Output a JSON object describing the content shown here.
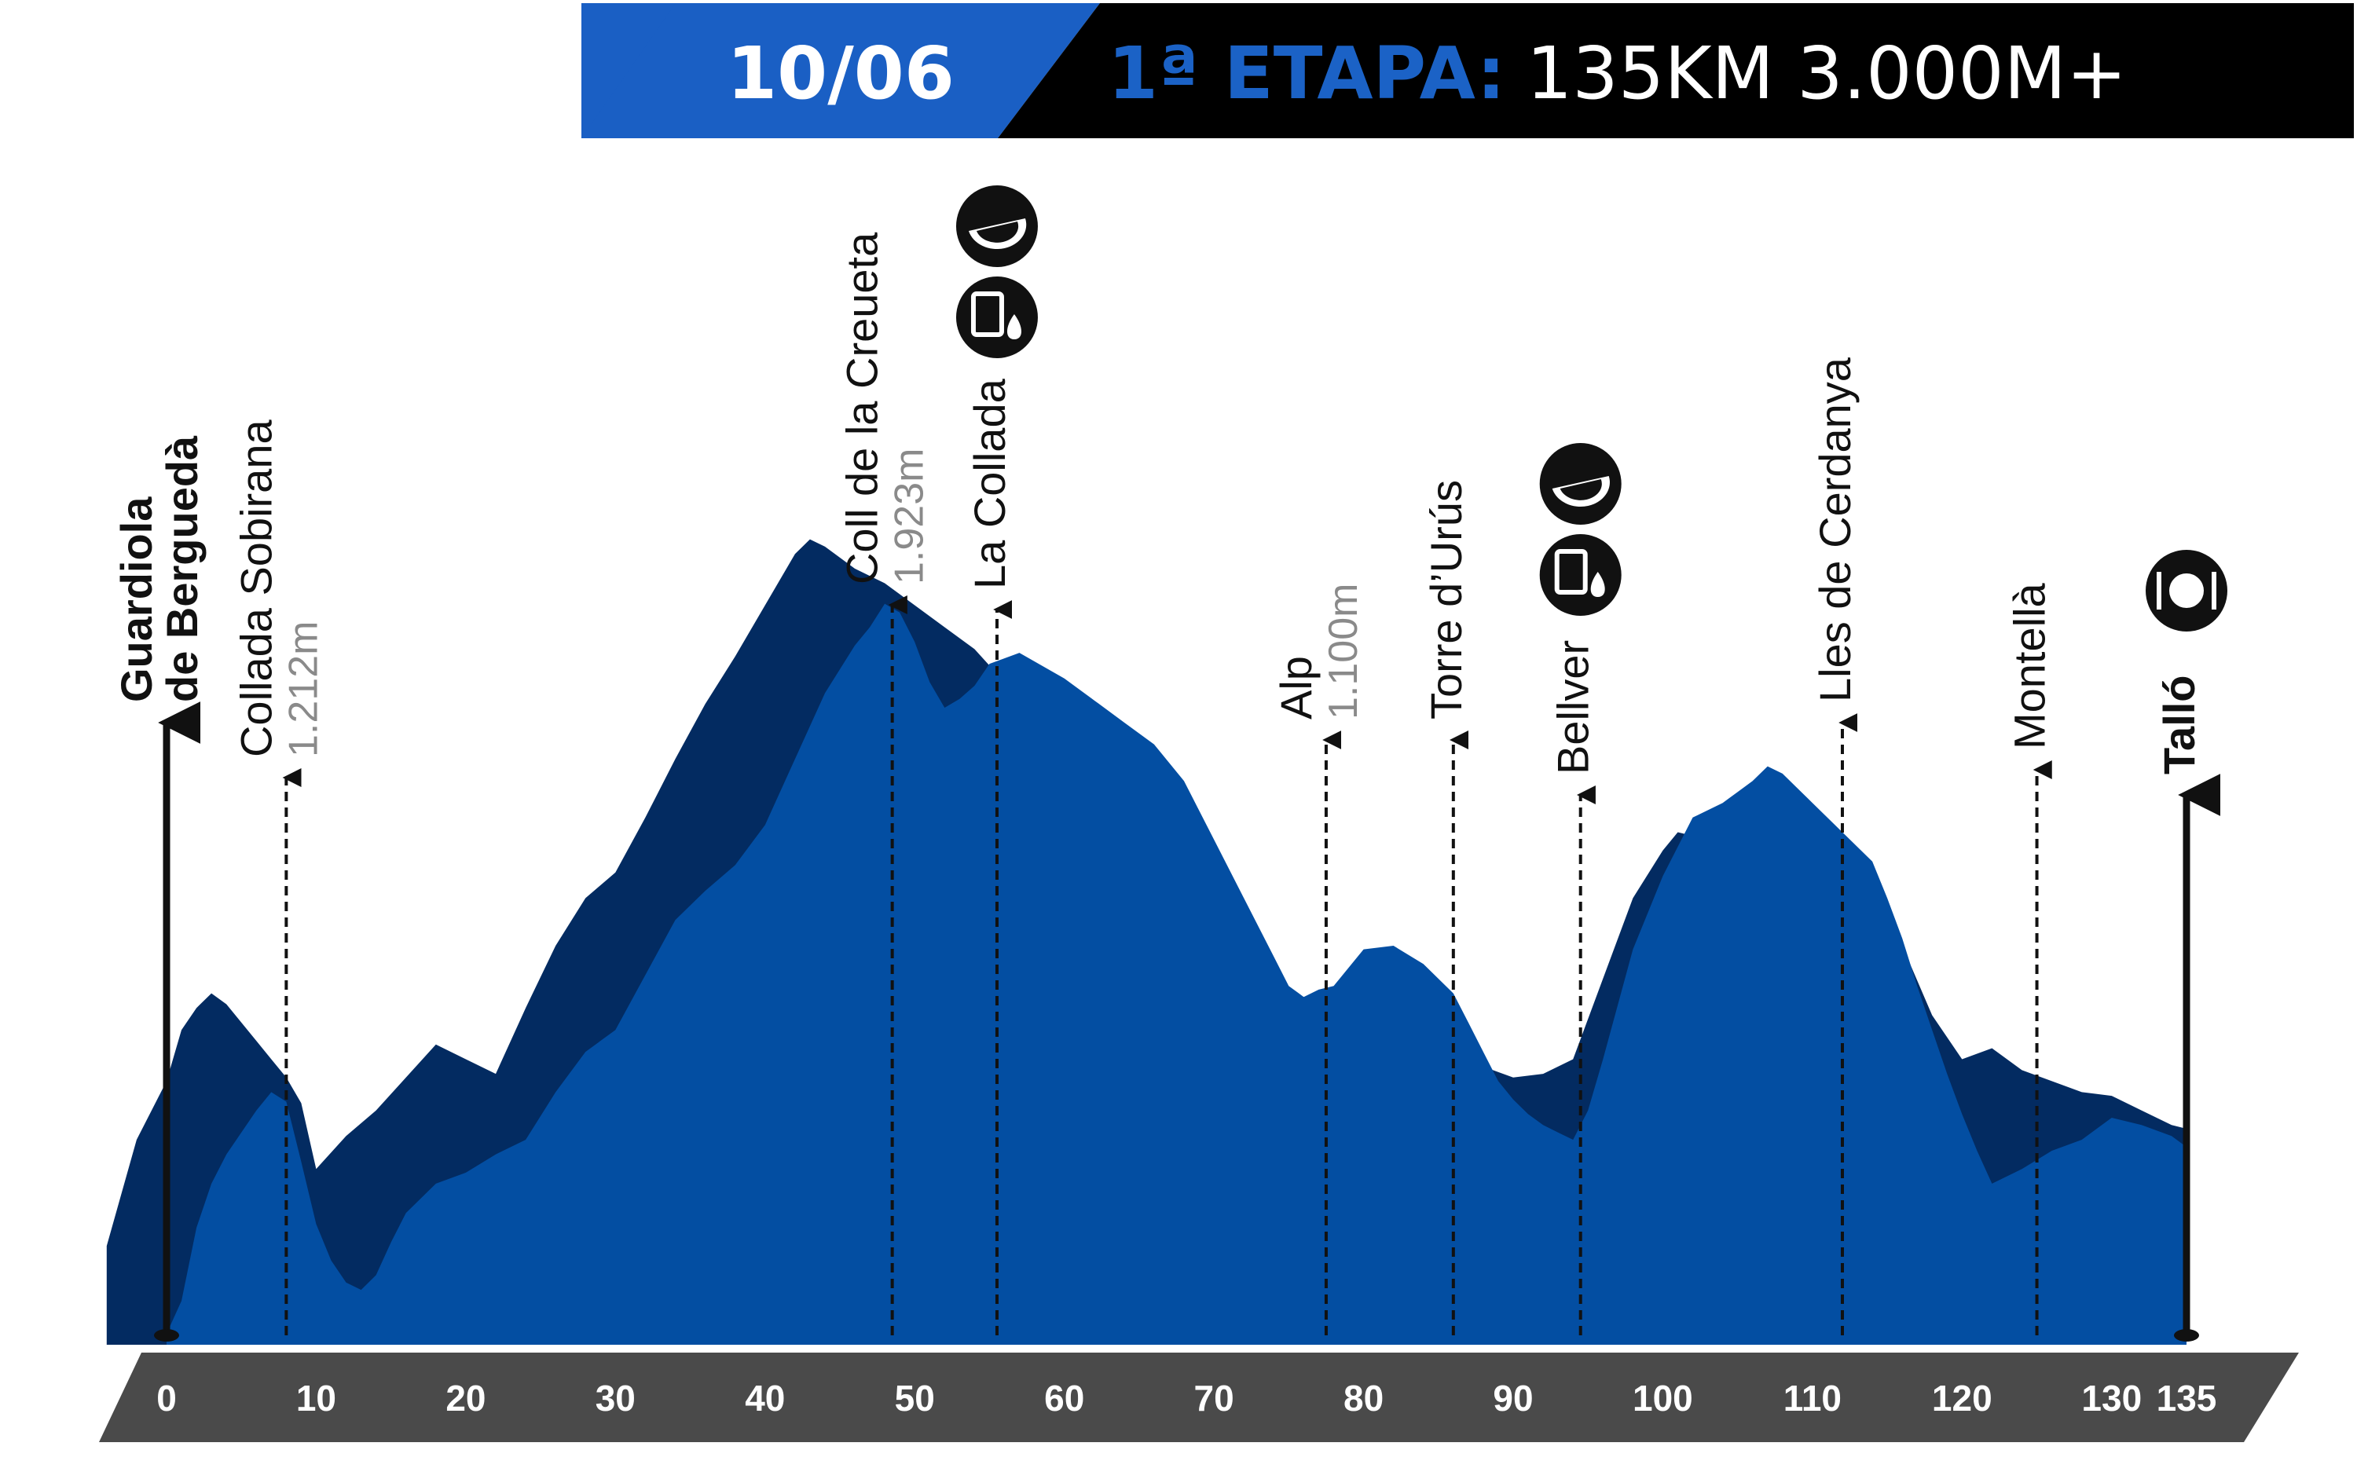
{
  "header": {
    "date": "10/06",
    "stage_label": "1ª ETAPA:",
    "stage_info": "135KM 3.000M+",
    "colors": {
      "date_band": "#1a5fc4",
      "stage_band": "#000000",
      "stage_label": "#1b62c6"
    }
  },
  "colors": {
    "profile_front": "#034ea2",
    "profile_back": "#032b61",
    "axis_band": "#4a4a4a",
    "tick_text": "#ffffff",
    "marker": "#111111",
    "altitude_text": "#8a8a8a"
  },
  "chart_data": {
    "type": "area",
    "title": "",
    "xlabel": "",
    "ylabel": "",
    "x_unit": "km",
    "xlim": [
      0,
      135
    ],
    "ylim": [
      900,
      2050
    ],
    "x_ticks": [
      0,
      10,
      20,
      30,
      40,
      50,
      60,
      70,
      80,
      90,
      100,
      110,
      120,
      130,
      135
    ],
    "grid": false,
    "legend": "none",
    "series": [
      {
        "values_km": [
          0,
          1,
          2,
          3,
          4,
          5,
          6,
          7,
          8,
          9,
          10,
          11,
          12,
          13,
          14,
          15,
          16,
          18,
          20,
          22,
          24,
          26,
          28,
          30,
          32,
          34,
          36,
          38,
          40,
          42,
          44,
          46,
          47,
          48,
          49,
          50,
          51,
          52,
          53,
          54,
          55,
          57,
          60,
          62,
          64,
          66,
          68,
          70,
          72,
          74,
          75,
          76,
          77,
          78,
          80,
          82,
          84,
          86,
          87,
          88,
          89,
          90,
          91,
          92,
          93,
          94,
          95,
          96,
          98,
          100,
          102,
          104,
          105,
          106,
          107,
          108,
          110,
          112,
          114,
          115,
          116,
          117,
          118,
          119,
          120,
          121,
          122,
          124,
          126,
          128,
          130,
          132,
          134,
          135
        ],
        "elevation_m": [
          915,
          960,
          1060,
          1120,
          1160,
          1190,
          1220,
          1245,
          1232,
          1150,
          1065,
          1015,
          985,
          975,
          995,
          1040,
          1080,
          1120,
          1135,
          1160,
          1180,
          1245,
          1300,
          1330,
          1405,
          1480,
          1520,
          1555,
          1610,
          1700,
          1790,
          1855,
          1880,
          1912,
          1900,
          1860,
          1805,
          1770,
          1782,
          1800,
          1830,
          1845,
          1810,
          1780,
          1750,
          1720,
          1670,
          1590,
          1510,
          1430,
          1390,
          1375,
          1385,
          1390,
          1440,
          1445,
          1420,
          1380,
          1340,
          1300,
          1260,
          1235,
          1215,
          1200,
          1190,
          1180,
          1220,
          1290,
          1440,
          1540,
          1620,
          1640,
          1655,
          1670,
          1690,
          1680,
          1640,
          1600,
          1560,
          1510,
          1455,
          1390,
          1330,
          1270,
          1215,
          1165,
          1120,
          1140,
          1165,
          1180,
          1210,
          1200,
          1185,
          1170
        ]
      },
      {
        "values_km": [
          -4,
          -2,
          0,
          1,
          2,
          3,
          4,
          5,
          6,
          7,
          8,
          9,
          10,
          12,
          14,
          16,
          18,
          20,
          22,
          24,
          26,
          28,
          30,
          32,
          34,
          36,
          38,
          40,
          42,
          43,
          44,
          46,
          48,
          50,
          52,
          54,
          56,
          58,
          60,
          62,
          64,
          66,
          68,
          70,
          72,
          74,
          76,
          78,
          80,
          81,
          82,
          84,
          86,
          88,
          90,
          92,
          94,
          96,
          98,
          100,
          101,
          102,
          104,
          106,
          108,
          110,
          112,
          114,
          116,
          118,
          120,
          122,
          124,
          126,
          128,
          130,
          132,
          134,
          135
        ],
        "elevation_m": [
          1035,
          1180,
          1260,
          1330,
          1360,
          1380,
          1365,
          1340,
          1315,
          1290,
          1265,
          1230,
          1140,
          1185,
          1220,
          1265,
          1310,
          1290,
          1270,
          1360,
          1445,
          1510,
          1545,
          1620,
          1700,
          1775,
          1840,
          1910,
          1980,
          2000,
          1990,
          1960,
          1940,
          1910,
          1880,
          1850,
          1805,
          1760,
          1715,
          1670,
          1630,
          1575,
          1500,
          1420,
          1380,
          1380,
          1375,
          1380,
          1420,
          1425,
          1420,
          1385,
          1340,
          1280,
          1265,
          1270,
          1290,
          1400,
          1510,
          1575,
          1600,
          1595,
          1585,
          1590,
          1560,
          1535,
          1505,
          1480,
          1445,
          1350,
          1290,
          1305,
          1275,
          1260,
          1245,
          1240,
          1220,
          1200,
          1195
        ]
      }
    ],
    "waypoints": [
      {
        "name_lines": [
          "Guardiola",
          "de Berguedà"
        ],
        "km": 0,
        "type": "start",
        "services": []
      },
      {
        "name_lines": [
          "Collada Sobirana"
        ],
        "altitude": "1.212m",
        "km": 8,
        "type": "point",
        "services": []
      },
      {
        "name_lines": [
          "Coll de la Creueta"
        ],
        "altitude": "1.923m",
        "km": 48.5,
        "type": "summit",
        "services": []
      },
      {
        "name_lines": [
          "La Collada"
        ],
        "km": 55.5,
        "type": "point",
        "services": [
          "fruit",
          "drink"
        ]
      },
      {
        "name_lines": [
          "Alp"
        ],
        "altitude": "1.100m",
        "km": 77.5,
        "type": "point",
        "services": []
      },
      {
        "name_lines": [
          "Torre d’Urús"
        ],
        "km": 86,
        "type": "point",
        "services": []
      },
      {
        "name_lines": [
          "Bellver"
        ],
        "km": 94.5,
        "type": "point",
        "services": [
          "fruit",
          "drink"
        ]
      },
      {
        "name_lines": [
          "Lles de Cerdanya"
        ],
        "km": 112,
        "type": "point",
        "services": []
      },
      {
        "name_lines": [
          "Montellà"
        ],
        "km": 125,
        "type": "point",
        "services": []
      },
      {
        "name_lines": [
          "Talló"
        ],
        "km": 135,
        "type": "finish",
        "services": [
          "meal"
        ]
      }
    ]
  }
}
